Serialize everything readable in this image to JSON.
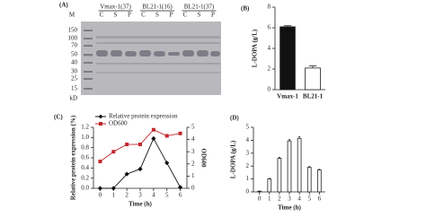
{
  "gel": {
    "panel_label": "(A)",
    "lane_labels": [
      "M",
      "C",
      "S",
      "P",
      "C",
      "S",
      "P",
      "C",
      "S",
      "P"
    ],
    "groups": [
      "Vmax-1(37)",
      "BL21-1(16)",
      "BL21-1(37)"
    ],
    "markers": [
      "150",
      "100",
      "70",
      "50",
      "40",
      "30",
      "25",
      "15"
    ],
    "marker_unit": "kD"
  },
  "chart_data": [
    {
      "type": "bar",
      "panel_label": "(B)",
      "y_label": "L-DOPA (g/L)",
      "categories": [
        "Vmax-1",
        "BL21-1"
      ],
      "values": [
        6.1,
        2.1
      ],
      "errors": [
        0.1,
        0.2
      ],
      "colors": [
        "#111111",
        "#ffffff"
      ],
      "ylim": [
        0,
        8
      ],
      "yticks": [
        0,
        2,
        4,
        6,
        8
      ]
    },
    {
      "type": "line",
      "panel_label": "(C)",
      "x_label": "Time (h)",
      "y_label": "Relative protein expression (%)",
      "y2_label": "OD600",
      "x": [
        0,
        1,
        2,
        3,
        4,
        5,
        6
      ],
      "xlim": [
        -0.5,
        6.5
      ],
      "xticks": [
        0,
        1,
        2,
        3,
        4,
        5,
        6
      ],
      "ylim": [
        0,
        1.2
      ],
      "yticks": [
        {
          "value": 0,
          "label": "0.0"
        },
        0.2,
        0.4,
        0.6,
        0.8,
        {
          "value": 1,
          "label": "1.0"
        },
        1.2
      ],
      "y2lim": [
        0,
        5
      ],
      "y2ticks": [
        0,
        1,
        2,
        3,
        4,
        5
      ],
      "series": [
        {
          "name": "Relative protein expression",
          "color": "#111111",
          "marker": "diamond",
          "values": [
            0.0,
            0.0,
            0.28,
            0.38,
            0.98,
            0.5,
            0.02
          ]
        },
        {
          "name": "OD600",
          "color": "#c0272d",
          "marker": "square",
          "axis": "y2",
          "values": [
            2.2,
            3.0,
            3.6,
            3.6,
            4.8,
            4.3,
            4.5
          ]
        }
      ]
    },
    {
      "type": "bar",
      "panel_label": "(D)",
      "x_label": "Time (h)",
      "y_label": "L-DOPA (g/L)",
      "x": [
        0,
        1,
        2,
        3,
        4,
        5,
        6
      ],
      "xlim": [
        -0.6,
        6.6
      ],
      "xticks": [
        0,
        1,
        2,
        3,
        4,
        5,
        6
      ],
      "values": [
        0.05,
        1.0,
        2.6,
        3.95,
        4.15,
        1.9,
        1.7
      ],
      "errors": [
        0.02,
        0.05,
        0.08,
        0.1,
        0.12,
        0.06,
        0.05
      ],
      "colors": [
        "#ffffff"
      ],
      "ylim": [
        0,
        5
      ],
      "yticks": [
        0,
        1,
        2,
        3,
        4,
        5
      ]
    }
  ]
}
